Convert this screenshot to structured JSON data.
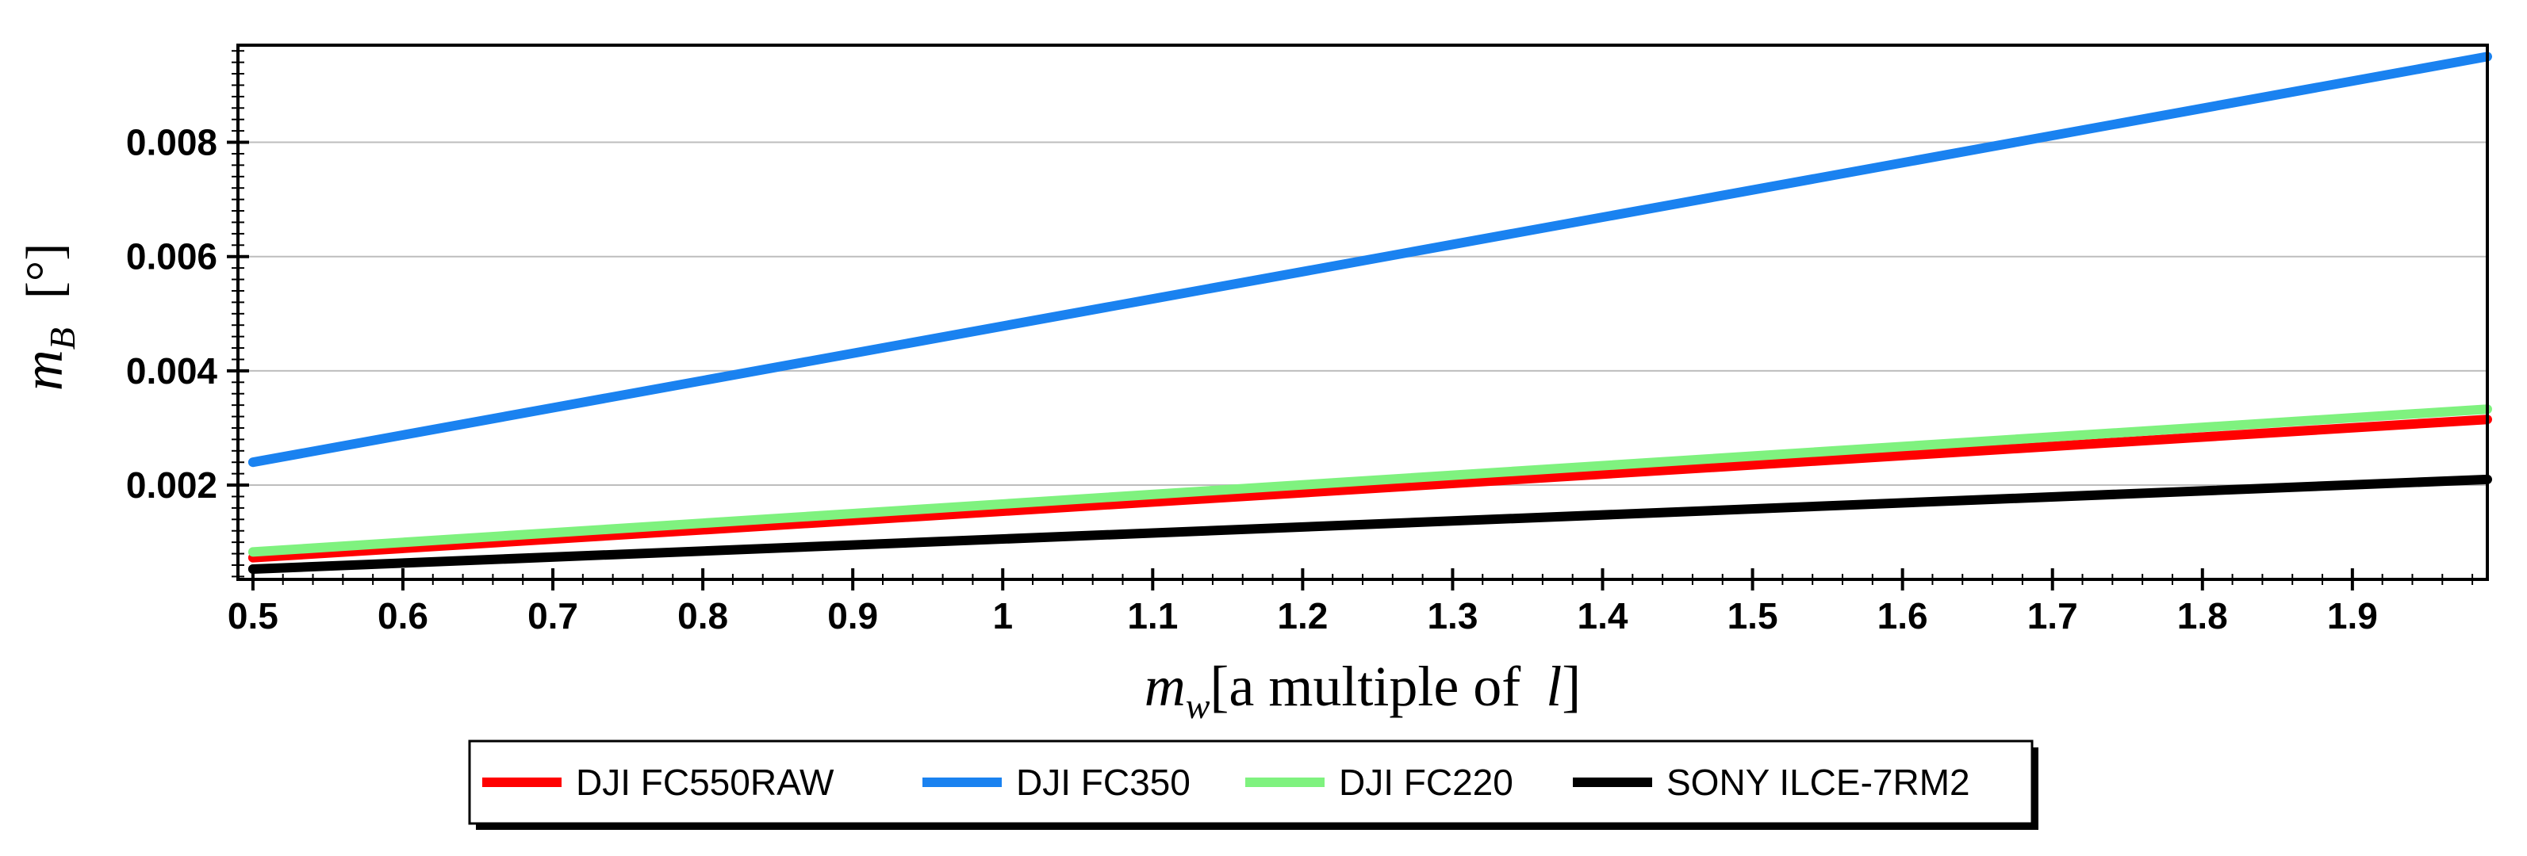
{
  "chart_data": {
    "type": "line",
    "title": "",
    "xlabel": {
      "symbol": "m",
      "subscript": "w",
      "text": "[a multiple of ",
      "var": "l",
      "close": "]"
    },
    "ylabel": {
      "symbol": "m",
      "subscript": "B",
      "unit": "[°]"
    },
    "xlim": [
      0.49,
      1.99
    ],
    "ylim": [
      0.00035,
      0.0097
    ],
    "xticks": [
      {
        "v": 0.5,
        "label": "0.5"
      },
      {
        "v": 0.6,
        "label": "0.6"
      },
      {
        "v": 0.7,
        "label": "0.7"
      },
      {
        "v": 0.8,
        "label": "0.8"
      },
      {
        "v": 0.9,
        "label": "0.9"
      },
      {
        "v": 1.0,
        "label": "1"
      },
      {
        "v": 1.1,
        "label": "1.1"
      },
      {
        "v": 1.2,
        "label": "1.2"
      },
      {
        "v": 1.3,
        "label": "1.3"
      },
      {
        "v": 1.4,
        "label": "1.4"
      },
      {
        "v": 1.5,
        "label": "1.5"
      },
      {
        "v": 1.6,
        "label": "1.6"
      },
      {
        "v": 1.7,
        "label": "1.7"
      },
      {
        "v": 1.8,
        "label": "1.8"
      },
      {
        "v": 1.9,
        "label": "1.9"
      }
    ],
    "yticks": [
      {
        "v": 0.002,
        "label": "0.002"
      },
      {
        "v": 0.004,
        "label": "0.004"
      },
      {
        "v": 0.006,
        "label": "0.006"
      },
      {
        "v": 0.008,
        "label": "0.008"
      }
    ],
    "grid": "horizontal",
    "legend_position": "bottom",
    "series": [
      {
        "name": "DJI FC550RAW",
        "color": "#ff0000",
        "x": [
          0.5,
          1.99
        ],
        "y": [
          0.00073,
          0.00315
        ]
      },
      {
        "name": "DJI FC350",
        "color": "#1a82f0",
        "x": [
          0.5,
          1.99
        ],
        "y": [
          0.0024,
          0.0095
        ]
      },
      {
        "name": "DJI FC220",
        "color": "#7ff27f",
        "x": [
          0.5,
          1.99
        ],
        "y": [
          0.00083,
          0.00333
        ]
      },
      {
        "name": "SONY ILCE-7RM2",
        "color": "#000000",
        "x": [
          0.5,
          1.99
        ],
        "y": [
          0.00053,
          0.0021
        ]
      }
    ]
  }
}
